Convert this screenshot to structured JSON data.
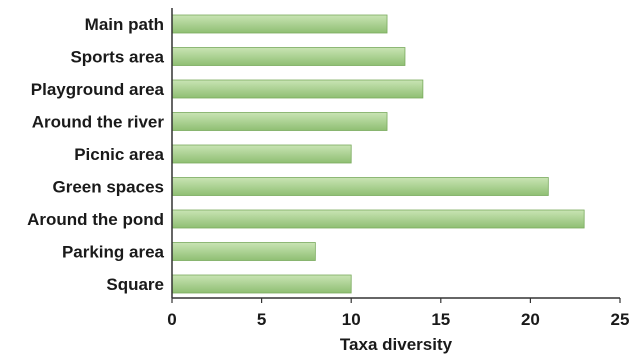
{
  "chart_data": {
    "type": "bar",
    "orientation": "horizontal",
    "categories": [
      "Main path",
      "Sports area",
      "Playground area",
      "Around the river",
      "Picnic area",
      "Green spaces",
      "Around the pond",
      "Parking area",
      "Square"
    ],
    "values": [
      12,
      13,
      14,
      12,
      10,
      21,
      23,
      8,
      10
    ],
    "xlabel": "Taxa diversity",
    "ylabel": "",
    "xlim": [
      0,
      25
    ],
    "xticks": [
      "0",
      "5",
      "10",
      "15",
      "20",
      "25"
    ],
    "grid": false,
    "legend": "none",
    "colors": {
      "bar_light": "#c9e4b4",
      "bar_dark": "#8fbf73",
      "bar_stroke": "#7aab5e",
      "axis": "#333333"
    }
  }
}
